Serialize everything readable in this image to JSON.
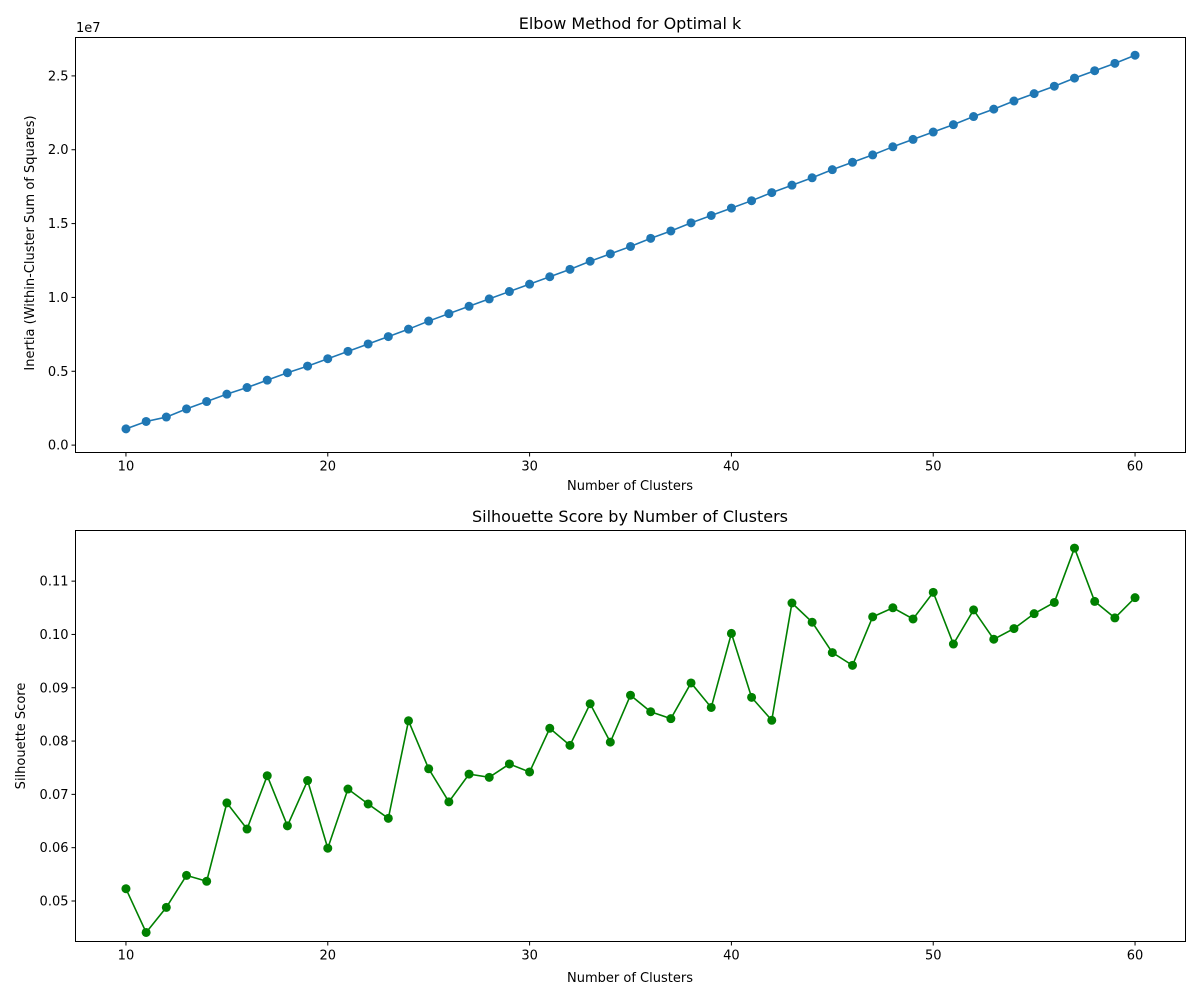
{
  "chart_data": [
    {
      "type": "line",
      "title": "Elbow Method for Optimal k",
      "xlabel": "Number of Clusters",
      "ylabel": "Inertia (Within-Cluster Sum of Squares)",
      "offset_text": "1e7",
      "xlim": [
        7.5,
        62.5
      ],
      "ylim": [
        -0.05,
        2.76
      ],
      "xticks": [
        10,
        20,
        30,
        40,
        50,
        60
      ],
      "xtick_labels": [
        "10",
        "20",
        "30",
        "40",
        "50",
        "60"
      ],
      "yticks": [
        0.0,
        0.5,
        1.0,
        1.5,
        2.0,
        2.5
      ],
      "ytick_labels": [
        "0.0",
        "0.5",
        "1.0",
        "1.5",
        "2.0",
        "2.5"
      ],
      "y_unit_multiplier": 10000000,
      "color": "#1f77b4",
      "marker": "circle",
      "grid": false,
      "series": [
        {
          "x": [
            10,
            11,
            12,
            13,
            14,
            15,
            16,
            17,
            18,
            19,
            20,
            21,
            22,
            23,
            24,
            25,
            26,
            27,
            28,
            29,
            30,
            31,
            32,
            33,
            34,
            35,
            36,
            37,
            38,
            39,
            40,
            41,
            42,
            43,
            44,
            45,
            46,
            47,
            48,
            49,
            50,
            51,
            52,
            53,
            54,
            55,
            56,
            57,
            58,
            59,
            60
          ],
          "values": [
            0.11,
            0.16,
            0.19,
            0.245,
            0.295,
            0.345,
            0.39,
            0.44,
            0.49,
            0.535,
            0.585,
            0.635,
            0.685,
            0.735,
            0.785,
            0.84,
            0.89,
            0.94,
            0.99,
            1.04,
            1.09,
            1.14,
            1.19,
            1.245,
            1.295,
            1.345,
            1.4,
            1.45,
            1.505,
            1.555,
            1.605,
            1.655,
            1.71,
            1.76,
            1.81,
            1.865,
            1.915,
            1.965,
            2.02,
            2.07,
            2.12,
            2.17,
            2.225,
            2.275,
            2.33,
            2.38,
            2.43,
            2.485,
            2.535,
            2.585,
            2.64
          ]
        }
      ]
    },
    {
      "type": "line",
      "title": "Silhouette Score by Number of Clusters",
      "xlabel": "Number of Clusters",
      "ylabel": "Silhouette Score",
      "xlim": [
        7.5,
        62.5
      ],
      "ylim": [
        0.0424,
        0.1195
      ],
      "xticks": [
        10,
        20,
        30,
        40,
        50,
        60
      ],
      "xtick_labels": [
        "10",
        "20",
        "30",
        "40",
        "50",
        "60"
      ],
      "yticks": [
        0.05,
        0.06,
        0.07,
        0.08,
        0.09,
        0.1,
        0.11
      ],
      "ytick_labels": [
        "0.05",
        "0.06",
        "0.07",
        "0.08",
        "0.09",
        "0.10",
        "0.11"
      ],
      "color": "#008000",
      "marker": "circle",
      "grid": false,
      "series": [
        {
          "x": [
            10,
            11,
            12,
            13,
            14,
            15,
            16,
            17,
            18,
            19,
            20,
            21,
            22,
            23,
            24,
            25,
            26,
            27,
            28,
            29,
            30,
            31,
            32,
            33,
            34,
            35,
            36,
            37,
            38,
            39,
            40,
            41,
            42,
            43,
            44,
            45,
            46,
            47,
            48,
            49,
            50,
            51,
            52,
            53,
            54,
            55,
            56,
            57,
            58,
            59,
            60
          ],
          "values": [
            0.0523,
            0.0441,
            0.0488,
            0.0548,
            0.0537,
            0.0684,
            0.0635,
            0.0735,
            0.0641,
            0.0726,
            0.0599,
            0.071,
            0.0682,
            0.0655,
            0.0838,
            0.0748,
            0.0686,
            0.0738,
            0.0732,
            0.0757,
            0.0742,
            0.0824,
            0.0792,
            0.087,
            0.0798,
            0.0886,
            0.0855,
            0.0842,
            0.0909,
            0.0863,
            0.1002,
            0.0882,
            0.0839,
            0.1059,
            0.1023,
            0.0966,
            0.0942,
            0.1033,
            0.105,
            0.1029,
            0.1079,
            0.0982,
            0.1046,
            0.0991,
            0.1011,
            0.1039,
            0.106,
            0.1162,
            0.1062,
            0.1031,
            0.1069
          ]
        }
      ]
    }
  ]
}
